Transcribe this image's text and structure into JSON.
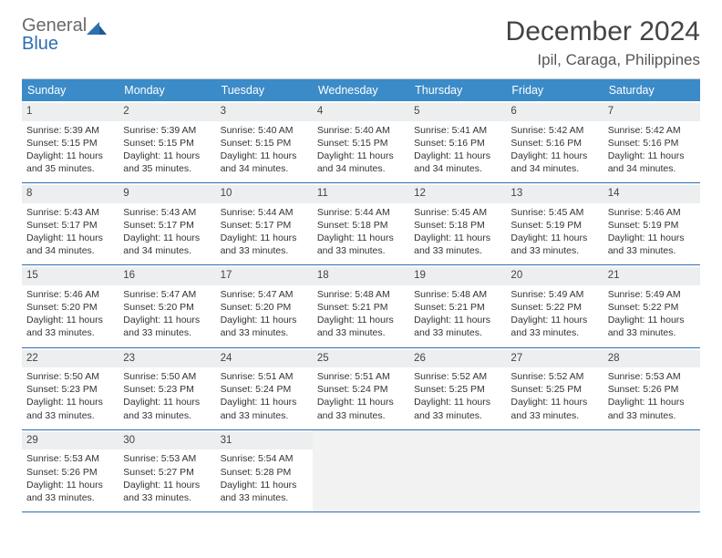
{
  "logo": {
    "line1": "General",
    "line2": "Blue"
  },
  "title": "December 2024",
  "location": "Ipil, Caraga, Philippines",
  "colors": {
    "header_bg": "#3b8bc8",
    "border": "#2f6fb0",
    "daynum_bg": "#eceeef",
    "logo_gray": "#6a6a6a",
    "logo_blue": "#2f6fb0"
  },
  "dow": [
    "Sunday",
    "Monday",
    "Tuesday",
    "Wednesday",
    "Thursday",
    "Friday",
    "Saturday"
  ],
  "days": [
    {
      "n": 1,
      "sr": "5:39 AM",
      "ss": "5:15 PM",
      "dl": "11 hours and 35 minutes."
    },
    {
      "n": 2,
      "sr": "5:39 AM",
      "ss": "5:15 PM",
      "dl": "11 hours and 35 minutes."
    },
    {
      "n": 3,
      "sr": "5:40 AM",
      "ss": "5:15 PM",
      "dl": "11 hours and 34 minutes."
    },
    {
      "n": 4,
      "sr": "5:40 AM",
      "ss": "5:15 PM",
      "dl": "11 hours and 34 minutes."
    },
    {
      "n": 5,
      "sr": "5:41 AM",
      "ss": "5:16 PM",
      "dl": "11 hours and 34 minutes."
    },
    {
      "n": 6,
      "sr": "5:42 AM",
      "ss": "5:16 PM",
      "dl": "11 hours and 34 minutes."
    },
    {
      "n": 7,
      "sr": "5:42 AM",
      "ss": "5:16 PM",
      "dl": "11 hours and 34 minutes."
    },
    {
      "n": 8,
      "sr": "5:43 AM",
      "ss": "5:17 PM",
      "dl": "11 hours and 34 minutes."
    },
    {
      "n": 9,
      "sr": "5:43 AM",
      "ss": "5:17 PM",
      "dl": "11 hours and 34 minutes."
    },
    {
      "n": 10,
      "sr": "5:44 AM",
      "ss": "5:17 PM",
      "dl": "11 hours and 33 minutes."
    },
    {
      "n": 11,
      "sr": "5:44 AM",
      "ss": "5:18 PM",
      "dl": "11 hours and 33 minutes."
    },
    {
      "n": 12,
      "sr": "5:45 AM",
      "ss": "5:18 PM",
      "dl": "11 hours and 33 minutes."
    },
    {
      "n": 13,
      "sr": "5:45 AM",
      "ss": "5:19 PM",
      "dl": "11 hours and 33 minutes."
    },
    {
      "n": 14,
      "sr": "5:46 AM",
      "ss": "5:19 PM",
      "dl": "11 hours and 33 minutes."
    },
    {
      "n": 15,
      "sr": "5:46 AM",
      "ss": "5:20 PM",
      "dl": "11 hours and 33 minutes."
    },
    {
      "n": 16,
      "sr": "5:47 AM",
      "ss": "5:20 PM",
      "dl": "11 hours and 33 minutes."
    },
    {
      "n": 17,
      "sr": "5:47 AM",
      "ss": "5:20 PM",
      "dl": "11 hours and 33 minutes."
    },
    {
      "n": 18,
      "sr": "5:48 AM",
      "ss": "5:21 PM",
      "dl": "11 hours and 33 minutes."
    },
    {
      "n": 19,
      "sr": "5:48 AM",
      "ss": "5:21 PM",
      "dl": "11 hours and 33 minutes."
    },
    {
      "n": 20,
      "sr": "5:49 AM",
      "ss": "5:22 PM",
      "dl": "11 hours and 33 minutes."
    },
    {
      "n": 21,
      "sr": "5:49 AM",
      "ss": "5:22 PM",
      "dl": "11 hours and 33 minutes."
    },
    {
      "n": 22,
      "sr": "5:50 AM",
      "ss": "5:23 PM",
      "dl": "11 hours and 33 minutes."
    },
    {
      "n": 23,
      "sr": "5:50 AM",
      "ss": "5:23 PM",
      "dl": "11 hours and 33 minutes."
    },
    {
      "n": 24,
      "sr": "5:51 AM",
      "ss": "5:24 PM",
      "dl": "11 hours and 33 minutes."
    },
    {
      "n": 25,
      "sr": "5:51 AM",
      "ss": "5:24 PM",
      "dl": "11 hours and 33 minutes."
    },
    {
      "n": 26,
      "sr": "5:52 AM",
      "ss": "5:25 PM",
      "dl": "11 hours and 33 minutes."
    },
    {
      "n": 27,
      "sr": "5:52 AM",
      "ss": "5:25 PM",
      "dl": "11 hours and 33 minutes."
    },
    {
      "n": 28,
      "sr": "5:53 AM",
      "ss": "5:26 PM",
      "dl": "11 hours and 33 minutes."
    },
    {
      "n": 29,
      "sr": "5:53 AM",
      "ss": "5:26 PM",
      "dl": "11 hours and 33 minutes."
    },
    {
      "n": 30,
      "sr": "5:53 AM",
      "ss": "5:27 PM",
      "dl": "11 hours and 33 minutes."
    },
    {
      "n": 31,
      "sr": "5:54 AM",
      "ss": "5:28 PM",
      "dl": "11 hours and 33 minutes."
    }
  ],
  "labels": {
    "sunrise": "Sunrise: ",
    "sunset": "Sunset: ",
    "daylight": "Daylight: "
  },
  "layout": {
    "first_weekday_index": 0,
    "trailing_empty": 4
  }
}
